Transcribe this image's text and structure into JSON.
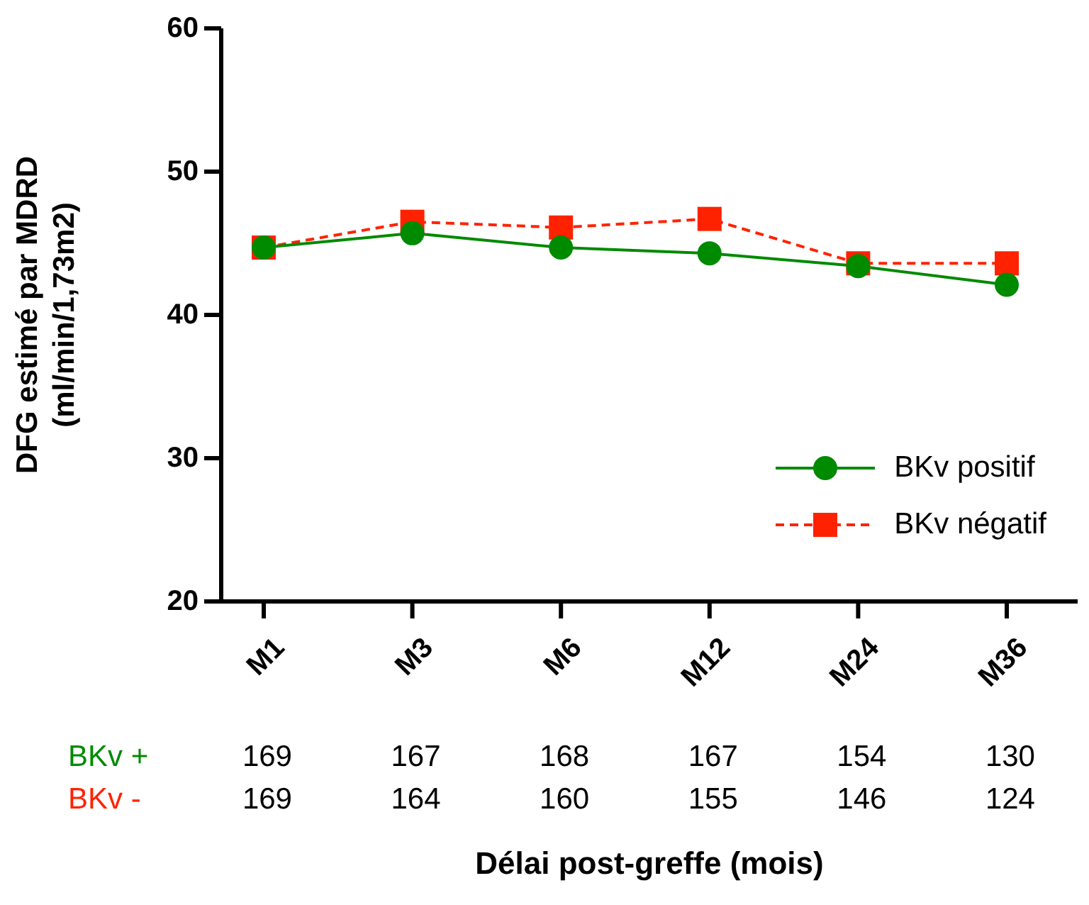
{
  "chart_data": {
    "type": "line",
    "xlabel": "Délai post-greffe (mois)",
    "ylabel": "DFG estimé par MDRD\n(ml/min/1,73m2)",
    "categories": [
      "M1",
      "M3",
      "M6",
      "M12",
      "M24",
      "M36"
    ],
    "ylim": [
      20,
      60
    ],
    "yticks": [
      20,
      30,
      40,
      50,
      60
    ],
    "grid": false,
    "legend": "bottom right",
    "series": [
      {
        "name": "BKv positif",
        "color": "#008a00",
        "marker": "circle",
        "line_style": "solid",
        "values": [
          44.7,
          45.7,
          44.7,
          44.3,
          43.4,
          42.1
        ]
      },
      {
        "name": "BKv négatif",
        "color": "#ff2200",
        "marker": "square",
        "line_style": "dashed",
        "values": [
          44.7,
          46.5,
          46.1,
          46.7,
          43.6,
          43.6
        ]
      }
    ],
    "annotations": [
      "BKv +",
      "169",
      "167",
      "168",
      "167",
      "154",
      "130",
      "BKv -",
      "169",
      "164",
      "160",
      "155",
      "146",
      "124"
    ]
  }
}
